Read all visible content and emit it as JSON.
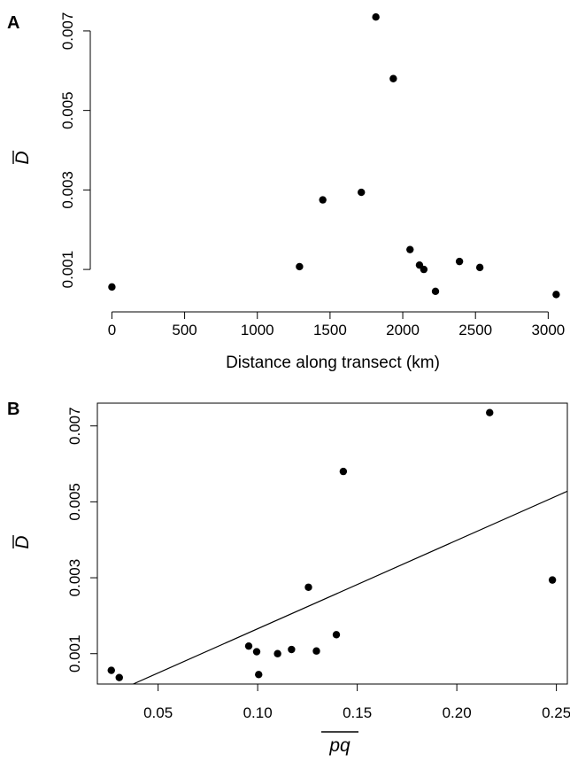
{
  "chart_data": [
    {
      "type": "scatter",
      "panel": "A",
      "xlabel": "Distance along transect (km)",
      "ylabel": "D",
      "ylabel_overline": true,
      "xlim": [
        -100,
        3150
      ],
      "ylim": [
        0.0002,
        0.0076
      ],
      "x_ticks": [
        0,
        500,
        1000,
        1500,
        2000,
        2500,
        3000
      ],
      "x_tick_labels": [
        "0",
        "500",
        "1000",
        "1500",
        "2000",
        "2500",
        "3000"
      ],
      "y_ticks": [
        0.001,
        0.003,
        0.005,
        0.007
      ],
      "y_tick_labels": [
        "0.001",
        "0.003",
        "0.005",
        "0.007"
      ],
      "points": [
        {
          "x": 0,
          "y": 0.00056
        },
        {
          "x": 1290,
          "y": 0.00107
        },
        {
          "x": 1450,
          "y": 0.00275
        },
        {
          "x": 1715,
          "y": 0.00294
        },
        {
          "x": 1815,
          "y": 0.00735
        },
        {
          "x": 1935,
          "y": 0.0058
        },
        {
          "x": 2050,
          "y": 0.0015
        },
        {
          "x": 2115,
          "y": 0.00111
        },
        {
          "x": 2145,
          "y": 0.001
        },
        {
          "x": 2225,
          "y": 0.00045
        },
        {
          "x": 2390,
          "y": 0.0012
        },
        {
          "x": 2530,
          "y": 0.00105
        },
        {
          "x": 3055,
          "y": 0.00037
        }
      ],
      "grid": false,
      "legend": "none"
    },
    {
      "type": "scatter",
      "panel": "B",
      "xlabel": "pq",
      "xlabel_overline": true,
      "ylabel": "D",
      "ylabel_overline": true,
      "xlim": [
        0.0195,
        0.2555
      ],
      "ylim": [
        0.0002,
        0.0076
      ],
      "x_ticks": [
        0.05,
        0.1,
        0.15,
        0.2,
        0.25
      ],
      "x_tick_labels": [
        "0.05",
        "0.10",
        "0.15",
        "0.20",
        "0.25"
      ],
      "y_ticks": [
        0.001,
        0.003,
        0.005,
        0.007
      ],
      "y_tick_labels": [
        "0.001",
        "0.003",
        "0.005",
        "0.007"
      ],
      "points": [
        {
          "x": 0.0265,
          "y": 0.00056
        },
        {
          "x": 0.0305,
          "y": 0.00037
        },
        {
          "x": 0.0955,
          "y": 0.0012
        },
        {
          "x": 0.0995,
          "y": 0.00105
        },
        {
          "x": 0.1005,
          "y": 0.00045
        },
        {
          "x": 0.11,
          "y": 0.001
        },
        {
          "x": 0.117,
          "y": 0.00111
        },
        {
          "x": 0.1255,
          "y": 0.00275
        },
        {
          "x": 0.1295,
          "y": 0.00107
        },
        {
          "x": 0.1395,
          "y": 0.0015
        },
        {
          "x": 0.143,
          "y": 0.0058
        },
        {
          "x": 0.2165,
          "y": 0.00735
        },
        {
          "x": 0.248,
          "y": 0.00294
        }
      ],
      "regression_line": {
        "x": [
          0.0375,
          0.2555
        ],
        "y": [
          0.0002,
          0.00528
        ]
      },
      "grid": false,
      "legend": "none"
    }
  ]
}
